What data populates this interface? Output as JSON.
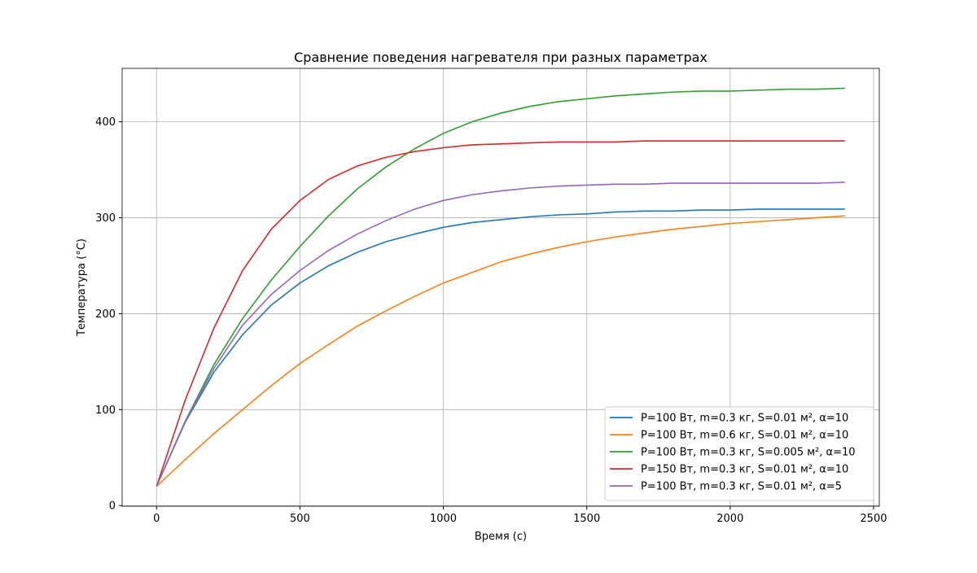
{
  "chart_data": {
    "type": "line",
    "title": "Сравнение поведения нагревателя при разных параметрах",
    "x_label": "Время (с)",
    "y_label": "Температура (°C)",
    "x": [
      0,
      100,
      200,
      300,
      400,
      500,
      600,
      700,
      800,
      900,
      1000,
      1100,
      1200,
      1300,
      1400,
      1500,
      1600,
      1700,
      1800,
      1900,
      2000,
      2100,
      2200,
      2300,
      2400
    ],
    "series": [
      {
        "name": "P=100 Вт, m=0.3 кг, S=0.01 м², α=10",
        "color": "#1f77b4",
        "values": [
          20,
          87,
          139,
          178,
          209,
          232,
          250,
          264,
          275,
          283,
          290,
          295,
          298,
          301,
          303,
          304,
          306,
          307,
          307,
          308,
          308,
          309,
          309,
          309,
          309
        ]
      },
      {
        "name": "P=100 Вт, m=0.6 кг, S=0.01 м², α=10",
        "color": "#ff7f0e",
        "values": [
          20,
          48,
          75,
          100,
          125,
          148,
          168,
          187,
          203,
          218,
          232,
          243,
          254,
          262,
          269,
          275,
          280,
          284,
          288,
          291,
          294,
          296,
          298,
          300,
          302
        ]
      },
      {
        "name": "P=100 Вт, m=0.3 кг, S=0.005 м², α=10",
        "color": "#2ca02c",
        "values": [
          20,
          88,
          147,
          195,
          235,
          270,
          302,
          330,
          353,
          372,
          388,
          400,
          409,
          416,
          421,
          424,
          427,
          429,
          431,
          432,
          432,
          433,
          434,
          434,
          435
        ]
      },
      {
        "name": "P=150 Вт, m=0.3 кг, S=0.01 м², α=10",
        "color": "#d62728",
        "values": [
          20,
          110,
          185,
          245,
          288,
          318,
          340,
          354,
          363,
          369,
          373,
          376,
          377,
          378,
          379,
          379,
          379,
          380,
          380,
          380,
          380,
          380,
          380,
          380,
          380
        ]
      },
      {
        "name": "P=100 Вт, m=0.3 кг, S=0.01 м², α=5",
        "color": "#9467bd",
        "values": [
          20,
          88,
          143,
          188,
          220,
          245,
          266,
          283,
          297,
          309,
          318,
          324,
          328,
          331,
          333,
          334,
          335,
          335,
          336,
          336,
          336,
          336,
          336,
          336,
          337
        ]
      }
    ],
    "xlim": [
      -120,
      2520
    ],
    "ylim": [
      -0.7,
      455.7
    ],
    "xticks": [
      0,
      500,
      1000,
      1500,
      2000,
      2500
    ],
    "yticks": [
      0,
      100,
      200,
      300,
      400
    ],
    "grid": true,
    "legend": "lower right"
  }
}
